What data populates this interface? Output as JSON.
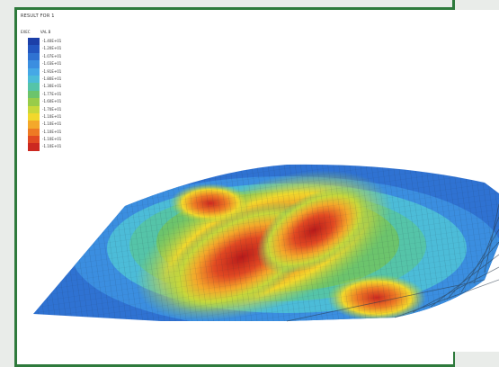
{
  "window": {
    "title": "RESULT FOR 1",
    "columns": [
      "EXEC",
      "VAL B"
    ]
  },
  "legend": {
    "entries": [
      {
        "label": "-1.40E+01",
        "color": "#1c3fa8"
      },
      {
        "label": "-1.20E+01",
        "color": "#2356c0"
      },
      {
        "label": "-1.07E+01",
        "color": "#2f72d2"
      },
      {
        "label": "-1.03E+01",
        "color": "#3b8ee0"
      },
      {
        "label": "-1.91E+01",
        "color": "#45a8e6"
      },
      {
        "label": "-1.80E+01",
        "color": "#4cbcd8"
      },
      {
        "label": "-1.30E+01",
        "color": "#55c4a8"
      },
      {
        "label": "-1.77E+01",
        "color": "#6cc46c"
      },
      {
        "label": "-1.60E+01",
        "color": "#98cc4a"
      },
      {
        "label": "-1.70E+01",
        "color": "#c8d83a"
      },
      {
        "label": "-1.10E+01",
        "color": "#f2d82c"
      },
      {
        "label": "-1.10E+01",
        "color": "#f4a82a"
      },
      {
        "label": "-1.10E+01",
        "color": "#ee7a24"
      },
      {
        "label": "-1.10E+01",
        "color": "#e24a22"
      },
      {
        "label": "-1.10E+01",
        "color": "#cc2820"
      }
    ]
  },
  "colors": {
    "frame": "#2e7a3c",
    "background": "#e9ece9"
  }
}
